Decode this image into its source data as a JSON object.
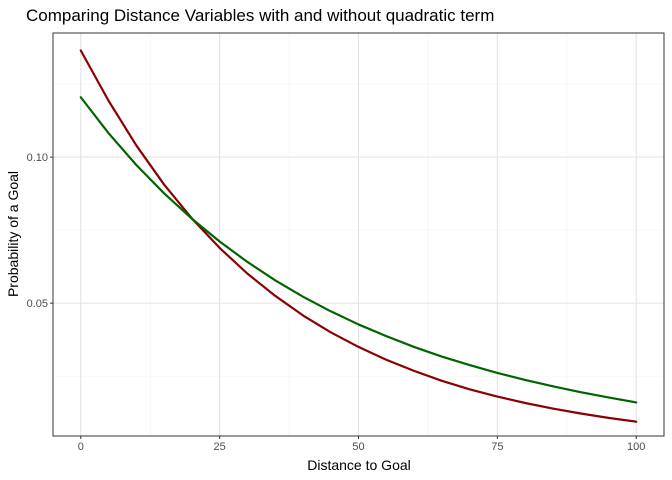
{
  "chart_data": {
    "type": "line",
    "title": "Comparing Distance Variables with and without quadratic term",
    "xlabel": "Distance to Goal",
    "ylabel": "Probability of a Goal",
    "xlim": [
      -5,
      105
    ],
    "ylim": [
      0.0045,
      0.1425
    ],
    "x_ticks": [
      0,
      25,
      50,
      75,
      100
    ],
    "x_tick_labels": [
      "0",
      "25",
      "50",
      "75",
      "100"
    ],
    "x_minor_ticks": [
      12.5,
      37.5,
      62.5,
      87.5
    ],
    "y_ticks": [
      0.05,
      0.1
    ],
    "y_tick_labels": [
      "0.05",
      "0.10"
    ],
    "y_minor_ticks": [
      0.025,
      0.075,
      0.125
    ],
    "grid": true,
    "legend": "none",
    "series": [
      {
        "color": "#8B0000",
        "x": [
          0,
          5,
          10,
          15,
          20,
          25,
          30,
          35,
          40,
          45,
          50,
          55,
          60,
          65,
          70,
          75,
          80,
          85,
          90,
          95,
          100
        ],
        "values": [
          0.1365,
          0.1193,
          0.104,
          0.0906,
          0.079,
          0.0689,
          0.0601,
          0.0525,
          0.0458,
          0.04,
          0.035,
          0.0306,
          0.0268,
          0.0234,
          0.0205,
          0.018,
          0.0158,
          0.0139,
          0.0122,
          0.0107,
          0.0094
        ]
      },
      {
        "color": "#006400",
        "x": [
          0,
          5,
          10,
          15,
          20,
          25,
          30,
          35,
          40,
          45,
          50,
          55,
          60,
          65,
          70,
          75,
          80,
          85,
          90,
          95,
          100
        ],
        "values": [
          0.1205,
          0.1082,
          0.0973,
          0.0876,
          0.0789,
          0.0711,
          0.0641,
          0.0578,
          0.0522,
          0.0472,
          0.0427,
          0.0387,
          0.035,
          0.0317,
          0.0288,
          0.0261,
          0.0237,
          0.0215,
          0.0195,
          0.0177,
          0.016
        ]
      }
    ]
  }
}
